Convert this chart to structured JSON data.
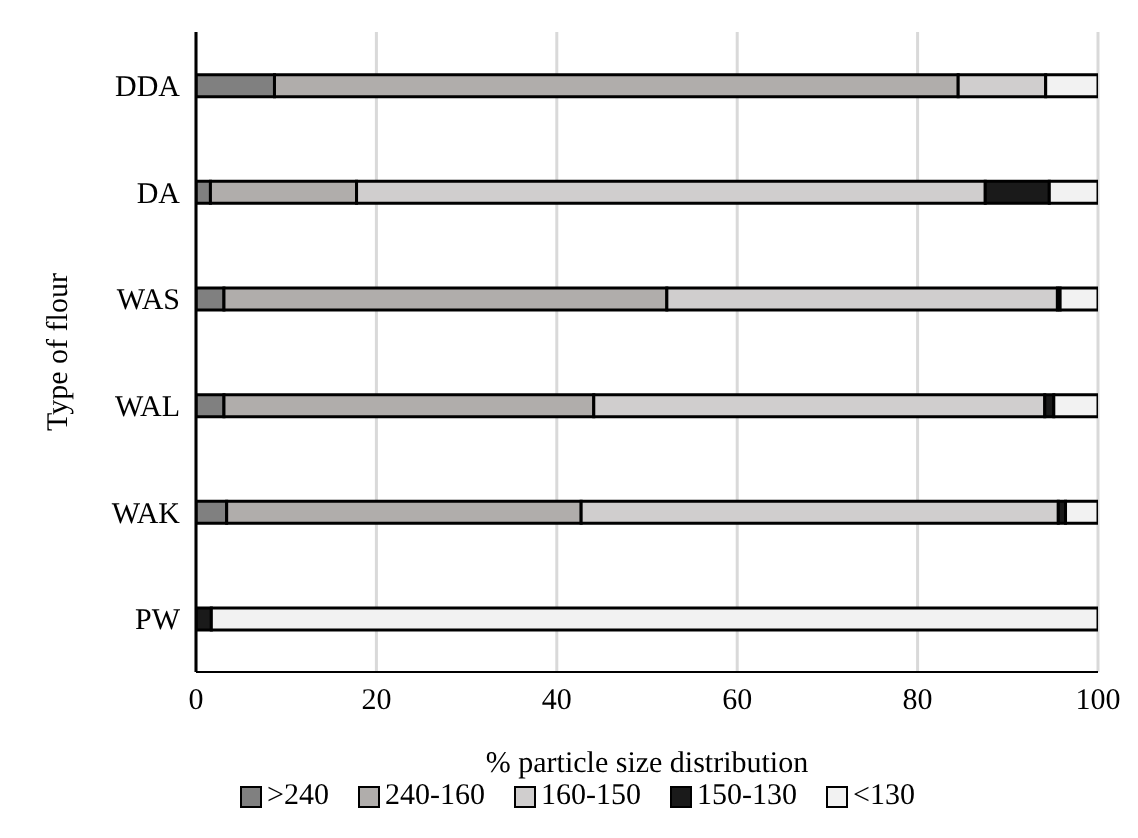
{
  "chart_data": {
    "type": "bar",
    "orientation": "horizontal",
    "stacked": true,
    "xlabel": "% particle size distribution",
    "ylabel": "Type of flour",
    "categories": [
      "DDA",
      "DA",
      "WAS",
      "WAL",
      "WAK",
      "PW"
    ],
    "series": [
      {
        "name": ">240",
        "color": "#808080",
        "values": [
          8.7,
          1.6,
          3.1,
          3.1,
          3.4,
          0
        ]
      },
      {
        "name": "240-160",
        "color": "#b0adab",
        "values": [
          75.8,
          16.2,
          49.1,
          41.0,
          39.3,
          0
        ]
      },
      {
        "name": "160-150",
        "color": "#d0cece",
        "values": [
          9.7,
          69.7,
          43.3,
          50.0,
          52.9,
          0
        ]
      },
      {
        "name": "150-130",
        "color": "#1a1a1a",
        "values": [
          0,
          7.1,
          0.3,
          1.0,
          0.8,
          1.7
        ]
      },
      {
        "name": "<130",
        "color": "#f2f2f2",
        "values": [
          5.8,
          5.4,
          4.2,
          4.9,
          3.6,
          98.3
        ]
      }
    ],
    "xlim": [
      0,
      100
    ],
    "xticks": [
      0,
      20,
      40,
      60,
      80,
      100
    ],
    "grid": "x",
    "legend": "bottom"
  }
}
